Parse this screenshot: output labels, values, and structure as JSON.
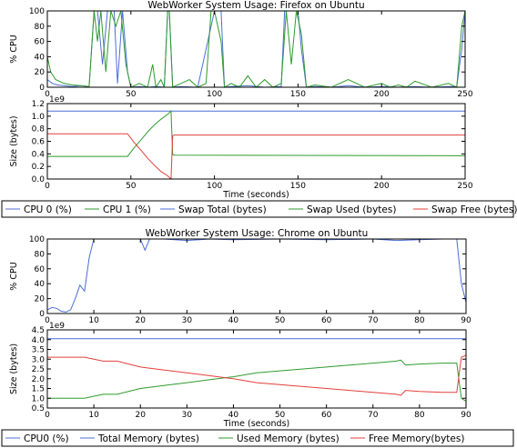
{
  "colors": {
    "cpu0": "#4b6fd8",
    "cpu1": "#2e9b2e",
    "swap_total": "#4b6fd8",
    "swap_used": "#2e9b2e",
    "swap_free": "#e0403c",
    "grid": "#000000"
  },
  "chart_data": [
    {
      "id": "firefox-cpu",
      "type": "line",
      "title": "WebWorker System Usage: Firefox on Ubuntu",
      "xlabel": "",
      "ylabel": "% CPU",
      "xlim": [
        0,
        250
      ],
      "ylim": [
        0,
        100
      ],
      "xticks": [
        "0",
        "50",
        "100",
        "150",
        "200",
        "250"
      ],
      "yticks": [
        "0",
        "20",
        "40",
        "60",
        "80",
        "100"
      ],
      "grid": false,
      "series": [
        {
          "name": "CPU 0 (%)",
          "color": "#4b6fd8",
          "x": [
            0,
            3,
            6,
            10,
            15,
            20,
            25,
            28,
            30,
            33,
            36,
            40,
            42,
            45,
            48,
            50,
            55,
            60,
            65,
            70,
            72,
            73,
            75,
            80,
            90,
            100,
            104,
            106,
            110,
            120,
            130,
            140,
            142,
            145,
            148,
            150,
            152,
            155,
            160,
            170,
            180,
            190,
            200,
            210,
            220,
            230,
            240,
            245,
            248,
            250
          ],
          "y": [
            10,
            5,
            3,
            2,
            1,
            2,
            1,
            100,
            100,
            30,
            100,
            100,
            5,
            100,
            20,
            0,
            1,
            0,
            1,
            0,
            100,
            100,
            0,
            1,
            0,
            100,
            100,
            0,
            1,
            2,
            0,
            1,
            100,
            100,
            100,
            100,
            50,
            0,
            1,
            0,
            2,
            0,
            1,
            0,
            1,
            0,
            1,
            1,
            50,
            100
          ]
        },
        {
          "name": "CPU 1 (%)",
          "color": "#2e9b2e",
          "x": [
            0,
            2,
            5,
            10,
            15,
            20,
            25,
            28,
            30,
            32,
            35,
            38,
            41,
            44,
            47,
            50,
            55,
            60,
            63,
            65,
            68,
            70,
            72,
            73,
            75,
            80,
            85,
            90,
            95,
            98,
            100,
            104,
            106,
            110,
            115,
            120,
            125,
            130,
            135,
            140,
            143,
            146,
            149,
            152,
            155,
            160,
            170,
            180,
            190,
            200,
            205,
            210,
            215,
            220,
            230,
            240,
            245,
            248,
            250
          ],
          "y": [
            40,
            20,
            10,
            5,
            3,
            2,
            1,
            100,
            60,
            100,
            20,
            100,
            80,
            100,
            30,
            0,
            5,
            0,
            30,
            0,
            10,
            0,
            100,
            100,
            0,
            5,
            10,
            0,
            5,
            100,
            100,
            60,
            0,
            5,
            0,
            15,
            0,
            10,
            0,
            5,
            100,
            30,
            100,
            70,
            0,
            3,
            0,
            10,
            0,
            5,
            0,
            3,
            0,
            8,
            0,
            5,
            0,
            80,
            100
          ]
        }
      ]
    },
    {
      "id": "firefox-memory",
      "type": "line",
      "title": "",
      "xlabel": "Time (seconds)",
      "ylabel": "Size (bytes)",
      "exponent_label": "1e9",
      "xlim": [
        0,
        250
      ],
      "ylim": [
        0.0,
        1.2
      ],
      "xticks": [
        "0",
        "50",
        "100",
        "150",
        "200",
        "250"
      ],
      "yticks": [
        "0.0",
        "0.2",
        "0.4",
        "0.6",
        "0.8",
        "1.0",
        "1.2"
      ],
      "grid": false,
      "series": [
        {
          "name": "Swap Total (bytes)",
          "color": "#4b6fd8",
          "x": [
            0,
            250
          ],
          "y": [
            1.08,
            1.08
          ]
        },
        {
          "name": "Swap Used (bytes)",
          "color": "#2e9b2e",
          "x": [
            0,
            48,
            52,
            56,
            60,
            64,
            68,
            72,
            74,
            75,
            76,
            250
          ],
          "y": [
            0.36,
            0.36,
            0.5,
            0.62,
            0.75,
            0.86,
            0.95,
            1.03,
            1.08,
            0.39,
            0.38,
            0.37
          ]
        },
        {
          "name": "Swap Free (bytes)",
          "color": "#e0403c",
          "x": [
            0,
            48,
            52,
            56,
            60,
            64,
            68,
            72,
            74,
            75,
            76,
            250
          ],
          "y": [
            0.72,
            0.72,
            0.58,
            0.46,
            0.33,
            0.22,
            0.12,
            0.05,
            0.0,
            0.69,
            0.7,
            0.7
          ]
        }
      ]
    },
    {
      "id": "chrome-cpu",
      "type": "line",
      "title": "WebWorker System Usage: Chrome on Ubuntu",
      "xlabel": "",
      "ylabel": "% CPU",
      "xlim": [
        0,
        90
      ],
      "ylim": [
        0,
        100
      ],
      "xticks": [
        "0",
        "10",
        "20",
        "30",
        "40",
        "50",
        "60",
        "70",
        "80",
        "90"
      ],
      "yticks": [
        "0",
        "20",
        "40",
        "60",
        "80",
        "100"
      ],
      "grid": false,
      "series": [
        {
          "name": "CPU0 (%)",
          "color": "#4b6fd8",
          "x": [
            0,
            1,
            2,
            3,
            4,
            5,
            6,
            7,
            8,
            9,
            10,
            15,
            20,
            21,
            22,
            25,
            30,
            35,
            40,
            50,
            60,
            70,
            75,
            80,
            85,
            88,
            89,
            90
          ],
          "y": [
            5,
            8,
            7,
            3,
            2,
            5,
            20,
            38,
            30,
            75,
            100,
            100,
            100,
            85,
            100,
            100,
            98,
            100,
            99,
            100,
            99,
            100,
            98,
            99,
            100,
            100,
            40,
            15
          ]
        }
      ]
    },
    {
      "id": "chrome-memory",
      "type": "line",
      "title": "",
      "xlabel": "Time (seconds)",
      "ylabel": "Size (bytes)",
      "exponent_label": "1e9",
      "xlim": [
        0,
        90
      ],
      "ylim": [
        0.5,
        4.5
      ],
      "xticks": [
        "0",
        "10",
        "20",
        "30",
        "40",
        "50",
        "60",
        "70",
        "80",
        "90"
      ],
      "yticks": [
        "0.5",
        "1.0",
        "1.5",
        "2.0",
        "2.5",
        "3.0",
        "3.5",
        "4.0",
        "4.5"
      ],
      "grid": false,
      "series": [
        {
          "name": "Total Memory (bytes)",
          "color": "#4b6fd8",
          "x": [
            0,
            90
          ],
          "y": [
            4.05,
            4.05
          ]
        },
        {
          "name": "Used Memory (bytes)",
          "color": "#2e9b2e",
          "x": [
            0,
            8,
            12,
            15,
            20,
            25,
            30,
            35,
            40,
            45,
            50,
            55,
            60,
            65,
            70,
            75,
            76,
            77,
            80,
            85,
            88,
            89,
            90
          ],
          "y": [
            1.0,
            1.0,
            1.2,
            1.2,
            1.5,
            1.65,
            1.8,
            1.95,
            2.1,
            2.3,
            2.4,
            2.5,
            2.6,
            2.7,
            2.8,
            2.9,
            2.95,
            2.7,
            2.75,
            2.8,
            2.8,
            1.0,
            0.85
          ]
        },
        {
          "name": "Free Memory(bytes)",
          "color": "#e0403c",
          "x": [
            0,
            8,
            12,
            15,
            20,
            25,
            30,
            35,
            40,
            45,
            50,
            55,
            60,
            65,
            70,
            75,
            76,
            77,
            80,
            85,
            88,
            89,
            90
          ],
          "y": [
            3.1,
            3.1,
            2.9,
            2.9,
            2.6,
            2.45,
            2.3,
            2.15,
            2.0,
            1.8,
            1.7,
            1.6,
            1.5,
            1.4,
            1.3,
            1.2,
            1.15,
            1.4,
            1.35,
            1.3,
            1.3,
            3.1,
            3.2
          ]
        }
      ]
    }
  ],
  "legends": {
    "firefox": [
      "CPU 0 (%)",
      "CPU 1 (%)",
      "Swap Total (bytes)",
      "Swap Used (bytes)",
      "Swap Free (bytes)"
    ],
    "chrome": [
      "CPU0 (%)",
      "Total Memory (bytes)",
      "Used Memory (bytes)",
      "Free Memory(bytes)"
    ]
  }
}
